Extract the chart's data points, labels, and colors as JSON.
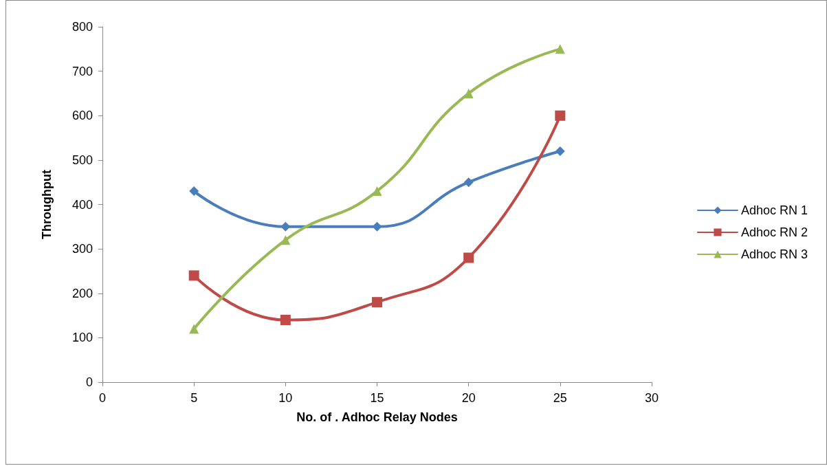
{
  "chart_data": {
    "type": "line",
    "xlabel": "No. of . Adhoc Relay Nodes",
    "ylabel": "Throughput",
    "x": [
      5,
      10,
      15,
      20,
      25
    ],
    "series": [
      {
        "name": "Adhoc RN 1",
        "color": "#4a7ebb",
        "marker": "diamond",
        "values": [
          430,
          350,
          350,
          450,
          520
        ]
      },
      {
        "name": "Adhoc RN 2",
        "color": "#be4b48",
        "marker": "square",
        "values": [
          240,
          140,
          180,
          280,
          600
        ]
      },
      {
        "name": "Adhoc RN 3",
        "color": "#98b954",
        "marker": "triangle",
        "values": [
          120,
          320,
          430,
          650,
          750
        ]
      }
    ],
    "xlim": [
      0,
      30
    ],
    "xticks": [
      0,
      5,
      10,
      15,
      20,
      25,
      30
    ],
    "ylim": [
      0,
      800
    ],
    "yticks": [
      0,
      100,
      200,
      300,
      400,
      500,
      600,
      700,
      800
    ],
    "grid": false,
    "legend": "right",
    "line_style": "solid"
  }
}
